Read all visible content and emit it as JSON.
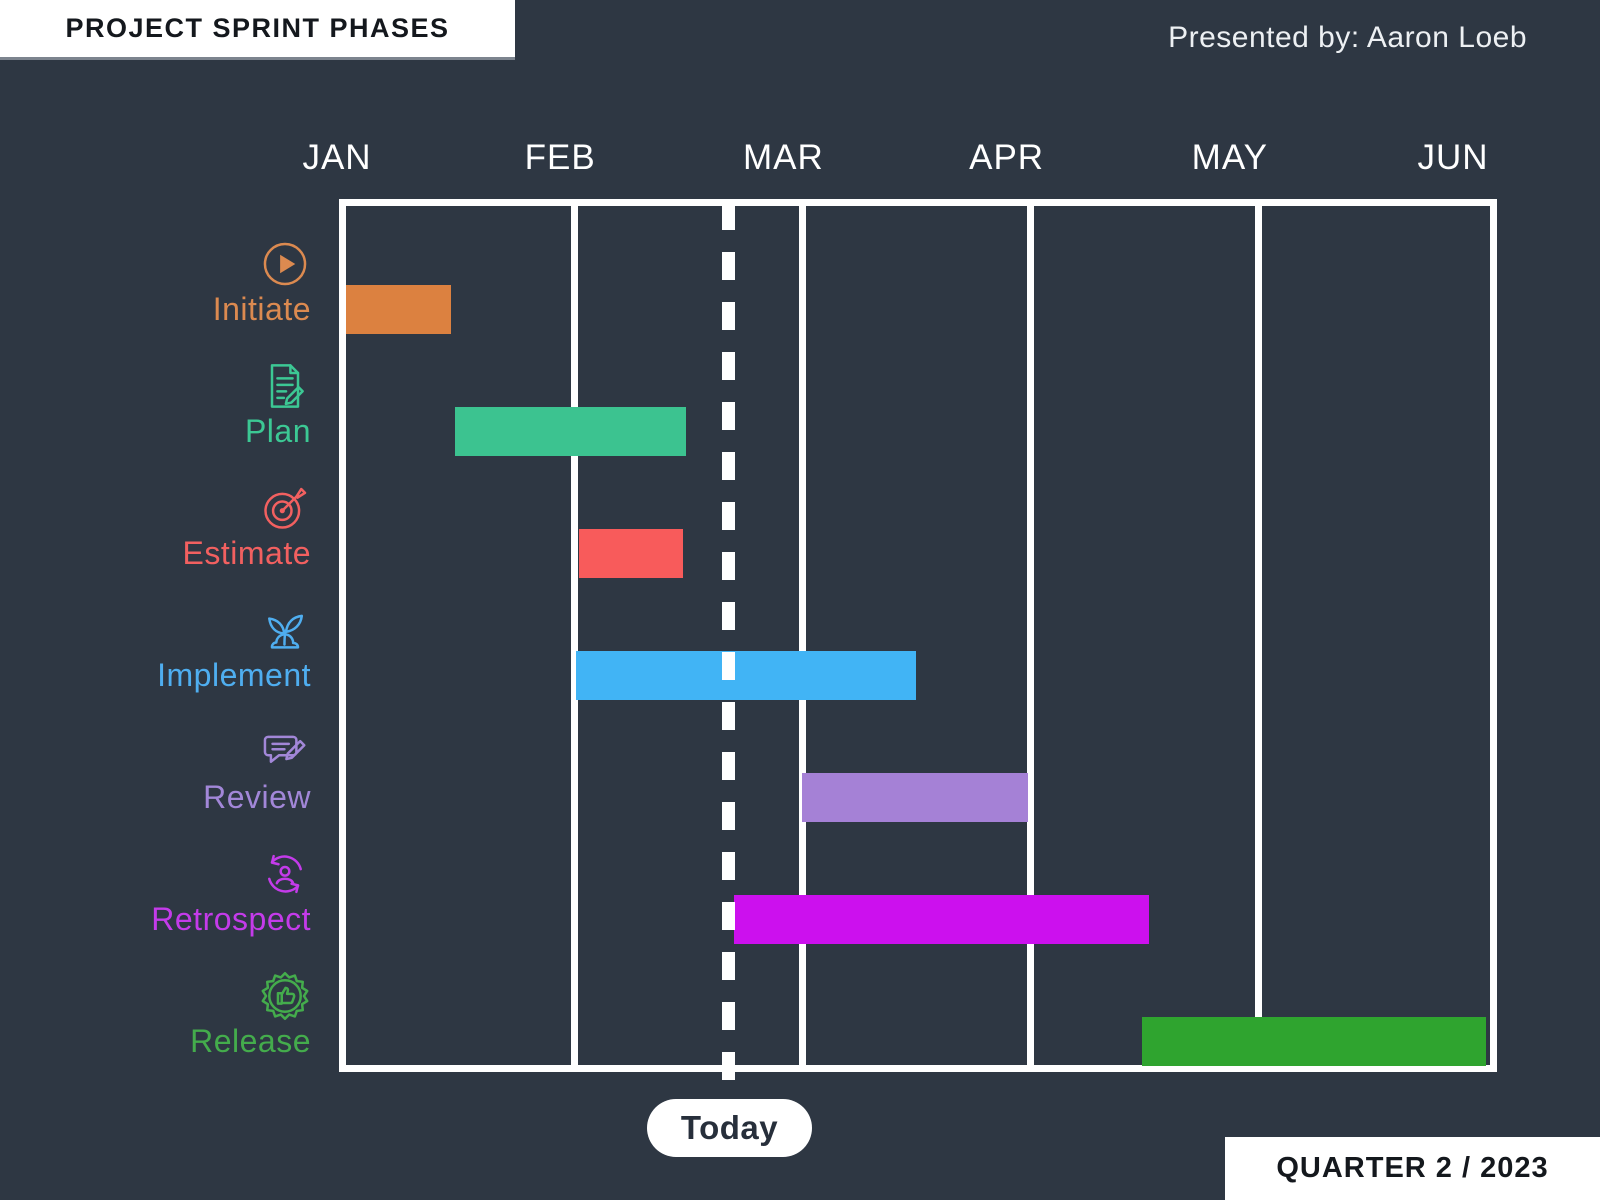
{
  "header": {
    "title": "PROJECT SPRINT PHASES",
    "presented_by": "Presented by: Aaron Loeb"
  },
  "footer": {
    "today_label": "Today",
    "quarter_label": "QUARTER 2 / 2023"
  },
  "colors": {
    "background": "#2E3743",
    "grid": "#FFFFFF",
    "title_text": "#14181D",
    "month_text": "#FFFFFF"
  },
  "chart_data": {
    "type": "gantt",
    "title": "PROJECT SPRINT PHASES",
    "months": [
      "JAN",
      "FEB",
      "MAR",
      "APR",
      "MAY",
      "JUN"
    ],
    "axis": {
      "start": "Jan 1",
      "end": "Jun 1",
      "span_months": 5,
      "gridlines_at_month_starts": true
    },
    "today": {
      "month_offset": 1.68,
      "date_approx": "Feb 20",
      "label": "Today"
    },
    "tasks": [
      {
        "name": "Initiate",
        "icon": "play-circle-icon",
        "bar_color": "#DC8140",
        "label_color": "#DC8A50",
        "start_month": 0.0,
        "end_month": 0.46,
        "start_date": "Jan 1",
        "end_date": "Jan 14"
      },
      {
        "name": "Plan",
        "icon": "document-pencil-icon",
        "bar_color": "#3CC390",
        "label_color": "#3CC894",
        "start_month": 0.48,
        "end_month": 1.49,
        "start_date": "Jan 15",
        "end_date": "Feb 15"
      },
      {
        "name": "Estimate",
        "icon": "target-dart-icon",
        "bar_color": "#F85B5B",
        "label_color": "#F26060",
        "start_month": 1.02,
        "end_month": 1.48,
        "start_date": "Feb 1",
        "end_date": "Feb 14"
      },
      {
        "name": "Implement",
        "icon": "sprout-icon",
        "bar_color": "#41B4F5",
        "label_color": "#4FAEF0",
        "start_month": 1.01,
        "end_month": 2.5,
        "start_date": "Feb 1",
        "end_date": "Mar 15"
      },
      {
        "name": "Review",
        "icon": "chat-pencil-icon",
        "bar_color": "#A581D6",
        "label_color": "#A287D8",
        "start_month": 2.0,
        "end_month": 2.99,
        "start_date": "Mar 1",
        "end_date": "Mar 31"
      },
      {
        "name": "Retrospect",
        "icon": "cycle-person-icon",
        "bar_color": "#CC10EE",
        "label_color": "#C43BEA",
        "start_month": 1.7,
        "end_month": 3.52,
        "start_date": "Feb 21",
        "end_date": "Apr 15"
      },
      {
        "name": "Release",
        "icon": "badge-thumbs-up-icon",
        "bar_color": "#2FA42F",
        "label_color": "#44AC4C",
        "start_month": 3.49,
        "end_month": 5.0,
        "start_date": "Apr 15",
        "end_date": "May 31"
      }
    ]
  }
}
